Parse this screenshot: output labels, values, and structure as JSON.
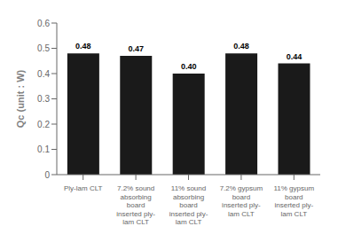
{
  "chart_data": {
    "type": "bar",
    "categories": [
      "Ply-lam CLT",
      "7.2% sound\nabsorbing\nboard\ninserted ply-\nlam CLT",
      "11% sound\nabsorbing\nboard\ninserted ply-\nlam CLT",
      "7.2% gypsum\nboard\ninserted ply-\nlam CLT",
      "11% gypsum\nboard\ninserted ply-\nlam CLT"
    ],
    "values": [
      0.48,
      0.47,
      0.4,
      0.48,
      0.44
    ],
    "value_labels": [
      "0.48",
      "0.47",
      "0.40",
      "0.48",
      "0.44"
    ],
    "data_labels": true,
    "color": "#1a1a1a",
    "ylabel": "Qc (unit : W)",
    "ylim": [
      0,
      0.6
    ],
    "yticks": [
      0,
      0.1,
      0.2,
      0.3,
      0.4,
      0.5,
      0.6
    ],
    "grid": false
  }
}
